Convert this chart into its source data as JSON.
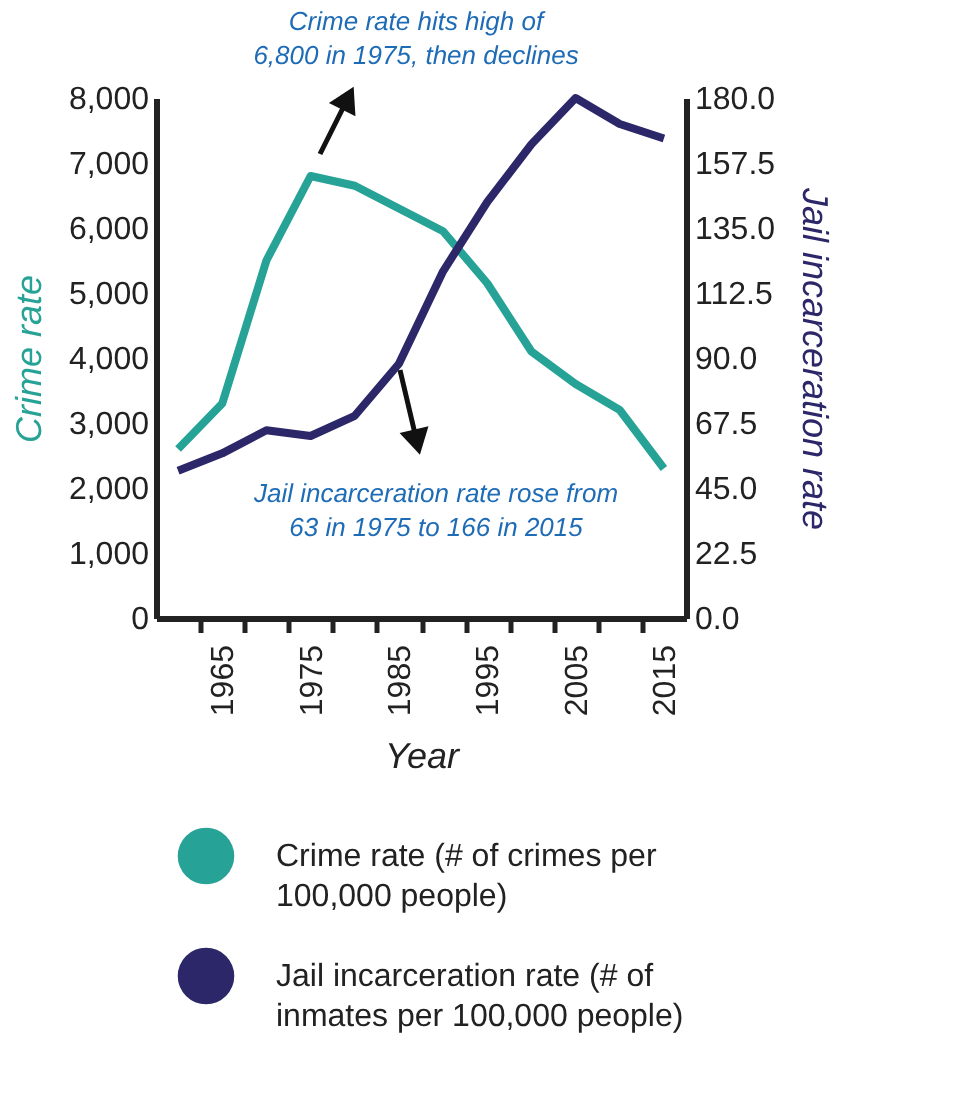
{
  "chart_data": {
    "type": "line",
    "x": [
      1960,
      1965,
      1970,
      1975,
      1980,
      1985,
      1990,
      1995,
      2000,
      2005,
      2010,
      2015
    ],
    "series": [
      {
        "name": "Crime rate (# of crimes per 100,000 people)",
        "color": "#26a396",
        "values": [
          2600,
          3300,
          5500,
          6800,
          6650,
          6300,
          5950,
          5150,
          4100,
          3600,
          3200,
          2300
        ]
      },
      {
        "name": "Jail incarceration rate (# of inmates per 100,000 people)",
        "color": "#2b2768",
        "axis": "y2",
        "values": [
          51,
          57,
          65,
          63,
          70,
          88,
          120,
          144,
          164,
          180,
          171,
          166
        ]
      }
    ],
    "xlabel": "Year",
    "ylabel": "Crime rate",
    "y2label": "Jail incarceration rate",
    "xlim": [
      1957.5,
      2017.5
    ],
    "xticks": [
      {
        "value": 1962.5,
        "label": null
      },
      {
        "value": 1965,
        "label": "1965"
      },
      {
        "value": 1967.5,
        "label": null
      },
      {
        "value": 1972.5,
        "label": null
      },
      {
        "value": 1975,
        "label": "1975"
      },
      {
        "value": 1977.5,
        "label": null
      },
      {
        "value": 1982.5,
        "label": null
      },
      {
        "value": 1985,
        "label": "1985"
      },
      {
        "value": 1987.5,
        "label": null
      },
      {
        "value": 1992.5,
        "label": null
      },
      {
        "value": 1995,
        "label": "1995"
      },
      {
        "value": 1997.5,
        "label": null
      },
      {
        "value": 2002.5,
        "label": null
      },
      {
        "value": 2005,
        "label": "2005"
      },
      {
        "value": 2007.5,
        "label": null
      },
      {
        "value": 2012.5,
        "label": null
      },
      {
        "value": 2015,
        "label": "2015"
      }
    ],
    "ylim": [
      0,
      8000
    ],
    "yticks": [
      0,
      {
        "value": 1000,
        "label": "1,000"
      },
      {
        "value": 2000,
        "label": "2,000"
      },
      {
        "value": 3000,
        "label": "3,000"
      },
      {
        "value": 4000,
        "label": "4,000"
      },
      {
        "value": 5000,
        "label": "5,000"
      },
      {
        "value": 6000,
        "label": "6,000"
      },
      {
        "value": 7000,
        "label": "7,000"
      },
      {
        "value": 8000,
        "label": "8,000"
      }
    ],
    "y2lim": [
      0,
      180
    ],
    "y2ticks": [
      {
        "value": 0,
        "label": "0.0"
      },
      22.5,
      {
        "value": 45,
        "label": "45.0"
      },
      67.5,
      {
        "value": 90,
        "label": "90.0"
      },
      112.5,
      {
        "value": 135,
        "label": "135.0"
      },
      157.5,
      {
        "value": 180,
        "label": "180.0"
      }
    ],
    "annotations": [
      "Crime rate hits high of 6,800 in 1975, then declines",
      "Jail incarceration rate rose from 63 in 1975 to 166 in 2015"
    ],
    "grid": false,
    "legend": "bottom"
  }
}
